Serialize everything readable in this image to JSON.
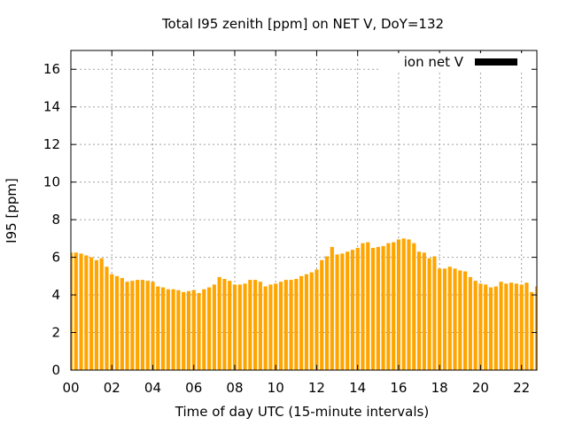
{
  "chart_data": {
    "type": "bar",
    "title": "Total I95 zenith [ppm] on NET V, DoY=132",
    "xlabel": "Time of day UTC (15-minute intervals)",
    "ylabel": "I95 [ppm]",
    "xlim": [
      0,
      22.75
    ],
    "ylim": [
      0,
      17
    ],
    "x_step_hours": 0.25,
    "x_ticks": [
      0,
      2,
      4,
      6,
      8,
      10,
      12,
      14,
      16,
      18,
      20,
      22
    ],
    "x_tick_labels": [
      "00",
      "02",
      "04",
      "06",
      "08",
      "10",
      "12",
      "14",
      "16",
      "18",
      "20",
      "22"
    ],
    "y_ticks": [
      0,
      2,
      4,
      6,
      8,
      10,
      12,
      14,
      16
    ],
    "y_tick_labels": [
      "0",
      "2",
      "4",
      "6",
      "8",
      "10",
      "12",
      "14",
      "16"
    ],
    "grid": true,
    "legend_position": "top-right",
    "bar_color": "#ffa500",
    "legend_swatch_color": "#000000",
    "series": [
      {
        "name": "ion net V",
        "values": [
          6.25,
          6.25,
          6.2,
          6.1,
          6.0,
          5.85,
          5.95,
          5.5,
          5.1,
          5.0,
          4.9,
          4.7,
          4.75,
          4.8,
          4.8,
          4.75,
          4.7,
          4.45,
          4.4,
          4.3,
          4.3,
          4.25,
          4.15,
          4.2,
          4.25,
          4.1,
          4.3,
          4.4,
          4.55,
          4.95,
          4.85,
          4.75,
          4.55,
          4.55,
          4.6,
          4.8,
          4.8,
          4.7,
          4.45,
          4.55,
          4.6,
          4.7,
          4.8,
          4.8,
          4.85,
          5.0,
          5.1,
          5.2,
          5.35,
          5.85,
          6.05,
          6.55,
          6.15,
          6.2,
          6.3,
          6.4,
          6.5,
          6.75,
          6.8,
          6.5,
          6.55,
          6.6,
          6.75,
          6.8,
          6.95,
          7.0,
          6.95,
          6.75,
          6.3,
          6.25,
          5.95,
          6.05,
          5.4,
          5.4,
          5.5,
          5.4,
          5.3,
          5.25,
          4.95,
          4.75,
          4.6,
          4.55,
          4.4,
          4.45,
          4.7,
          4.6,
          4.65,
          4.6,
          4.55,
          4.65,
          4.15,
          4.45
        ]
      }
    ]
  }
}
